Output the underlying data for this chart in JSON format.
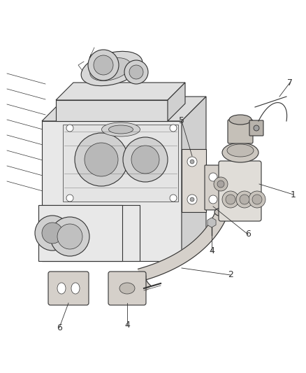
{
  "background_color": "#ffffff",
  "line_color": "#333333",
  "label_color": "#333333",
  "figsize": [
    4.38,
    5.33
  ],
  "dpi": 100,
  "lw_main": 0.8,
  "lw_thin": 0.5,
  "lw_thick": 1.2,
  "engine_color": "#e8e8e8",
  "engine_dark": "#d0d0d0",
  "engine_mid": "#dcdcdc",
  "part_color": "#e0ddd8",
  "part_dark": "#c8c5c0"
}
